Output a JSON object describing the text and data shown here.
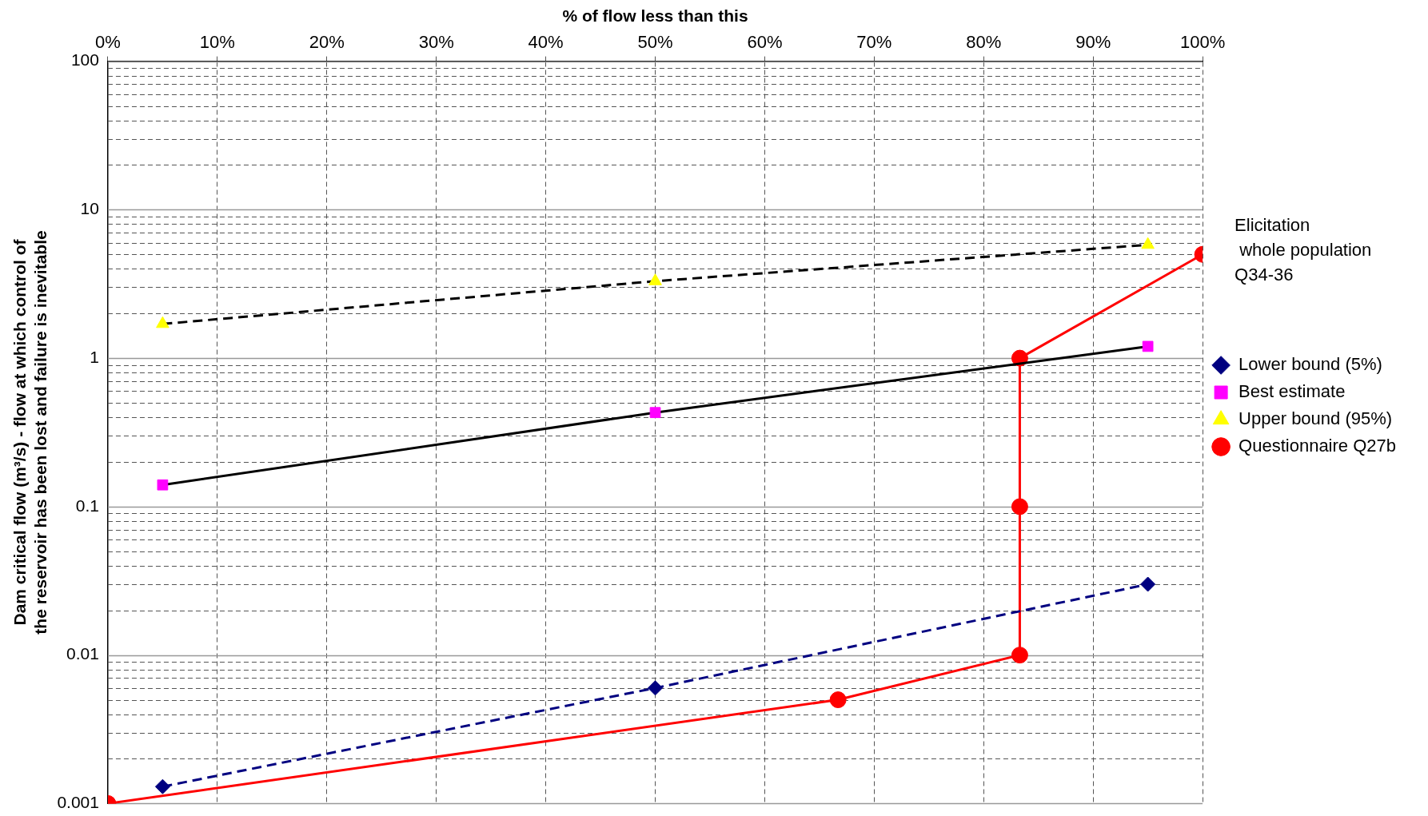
{
  "chart_data": {
    "type": "line",
    "xlabel": "% of flow less than this",
    "ylabel": "Dam critical flow (m³/s) - flow at which control of the reservoir has been lost and failure is inevitable",
    "xlim": [
      0,
      100
    ],
    "xticks": [
      {
        "value": 0,
        "label": "0%"
      },
      {
        "value": 10,
        "label": "10%"
      },
      {
        "value": 20,
        "label": "20%"
      },
      {
        "value": 30,
        "label": "30%"
      },
      {
        "value": 40,
        "label": "40%"
      },
      {
        "value": 50,
        "label": "50%"
      },
      {
        "value": 60,
        "label": "60%"
      },
      {
        "value": 70,
        "label": "70%"
      },
      {
        "value": 80,
        "label": "80%"
      },
      {
        "value": 90,
        "label": "90%"
      },
      {
        "value": 100,
        "label": "100%"
      }
    ],
    "log": "y",
    "ylim": [
      0.001,
      100
    ],
    "yticks": [
      0.001,
      {
        "value": 0.002,
        "label": null
      },
      {
        "value": 0.003,
        "label": null
      },
      {
        "value": 0.004,
        "label": null
      },
      {
        "value": 0.005,
        "label": null
      },
      {
        "value": 0.006,
        "label": null
      },
      {
        "value": 0.007,
        "label": null
      },
      {
        "value": 0.008,
        "label": null
      },
      {
        "value": 0.009,
        "label": null
      },
      0.01,
      {
        "value": 0.02,
        "label": null
      },
      {
        "value": 0.03,
        "label": null
      },
      {
        "value": 0.04,
        "label": null
      },
      {
        "value": 0.05,
        "label": null
      },
      {
        "value": 0.06,
        "label": null
      },
      {
        "value": 0.07,
        "label": null
      },
      {
        "value": 0.08,
        "label": null
      },
      {
        "value": 0.09,
        "label": null
      },
      0.1,
      {
        "value": 0.2,
        "label": null
      },
      {
        "value": 0.3,
        "label": null
      },
      {
        "value": 0.4,
        "label": null
      },
      {
        "value": 0.5,
        "label": null
      },
      {
        "value": 0.6,
        "label": null
      },
      {
        "value": 0.7,
        "label": null
      },
      {
        "value": 0.8,
        "label": null
      },
      {
        "value": 0.9,
        "label": null
      },
      1,
      {
        "value": 2,
        "label": null
      },
      {
        "value": 3,
        "label": null
      },
      {
        "value": 4,
        "label": null
      },
      {
        "value": 5,
        "label": null
      },
      {
        "value": 6,
        "label": null
      },
      {
        "value": 7,
        "label": null
      },
      {
        "value": 8,
        "label": null
      },
      {
        "value": 9,
        "label": null
      },
      10,
      {
        "value": 20,
        "label": null
      },
      {
        "value": 30,
        "label": null
      },
      {
        "value": 40,
        "label": null
      },
      {
        "value": 50,
        "label": null
      },
      {
        "value": 60,
        "label": null
      },
      {
        "value": 70,
        "label": null
      },
      {
        "value": 80,
        "label": null
      },
      {
        "value": 90,
        "label": null
      },
      100
    ],
    "grid": true,
    "legend": "right",
    "annotations": [
      "Elicitation\n whole population\nQ34-36"
    ],
    "series": [
      {
        "name": "Lower bound (5%)",
        "color": "#000080",
        "colors": [
          "#000080",
          "#000080",
          "#000080"
        ],
        "marker": "diamond",
        "line_style": "dashed",
        "x": [
          5,
          50,
          95
        ],
        "values": [
          0.0013,
          0.006,
          0.03
        ]
      },
      {
        "name": "Best estimate",
        "color": "#000000",
        "colors": [
          "#ff00ff",
          "#ff00ff",
          "#ff00ff"
        ],
        "marker": "square",
        "line_style": "solid",
        "x": [
          5,
          50,
          95
        ],
        "values": [
          0.14,
          0.43,
          1.2
        ]
      },
      {
        "name": "Upper bound (95%)",
        "color": "#000000",
        "colors": [
          "#ffff00",
          "#ffff00",
          "#ffff00"
        ],
        "marker": "triangle",
        "line_style": "dashed",
        "x": [
          5,
          50,
          95
        ],
        "values": [
          1.7,
          3.3,
          5.8
        ]
      },
      {
        "name": "Questionnaire Q27b",
        "color": "#ff0000",
        "colors": [
          "#ff0000",
          "#ff0000",
          "#ff0000",
          "#ff0000",
          "#ff0000",
          "#ff0000"
        ],
        "marker": "circle",
        "line_style": "solid",
        "x": [
          0,
          66.7,
          83.3,
          83.3,
          83.3,
          100
        ],
        "values": [
          0.001,
          0.005,
          0.01,
          0.1,
          1,
          5
        ]
      }
    ]
  }
}
